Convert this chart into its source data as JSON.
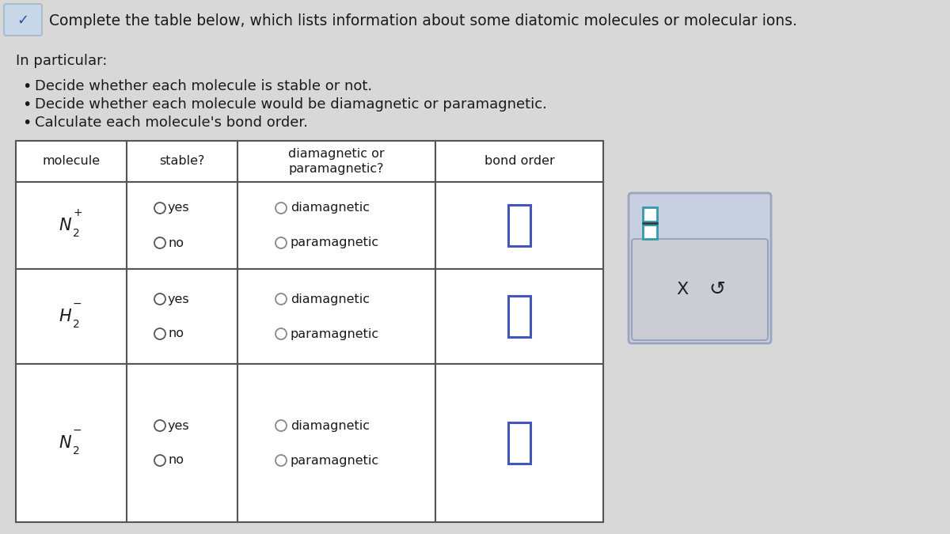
{
  "bg_color": "#d8d8d8",
  "title_text": "Complete the table below, which lists information about some diatomic molecules or molecular ions.",
  "in_particular_text": "In particular:",
  "bullets": [
    "Decide whether each molecule is stable or not.",
    "Decide whether each molecule would be diamagnetic or paramagnetic.",
    "Calculate each molecule's bond order."
  ],
  "table": {
    "col_headers": [
      "molecule",
      "stable?",
      "diamagnetic or\nparamagnetic?",
      "bond order"
    ],
    "border_color": "#555555",
    "row_molecules": [
      {
        "base": "N",
        "num": "2",
        "sup": "+"
      },
      {
        "base": "H",
        "num": "2",
        "sup": "−"
      },
      {
        "base": "N",
        "num": "2",
        "sup": "−"
      }
    ]
  },
  "side_panel": {
    "outer_bg": "#c8cfe0",
    "outer_border": "#9aa5bd",
    "inner_bg": "#cbcdd4",
    "inner_border": "#9aa5bd",
    "frac_box_color": "#3399aa",
    "button_x": "X",
    "button_s": "↺"
  },
  "text_color": "#1a1a1a",
  "radio_color": "#555555",
  "bond_box_color": "#4455bb",
  "checkmark_bg": "#c8d8e8"
}
